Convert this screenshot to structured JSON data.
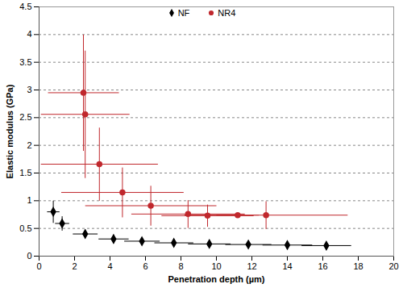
{
  "chart_data": {
    "type": "scatter",
    "x_label": "Penetration depth (µm)",
    "y_label": "Elastic modulus (GPa)",
    "xlim": [
      0,
      20
    ],
    "ylim": [
      0,
      4.5
    ],
    "xticks": [
      0,
      2,
      4,
      6,
      8,
      10,
      12,
      14,
      16,
      18,
      20
    ],
    "yticks": [
      0,
      0.5,
      1,
      1.5,
      2,
      2.5,
      3,
      3.5,
      4,
      4.5
    ],
    "grid": true,
    "legend": "top",
    "series": [
      {
        "name": "NF",
        "color": "#000000",
        "marker": "diamond",
        "x": [
          0.8,
          1.3,
          2.6,
          4.2,
          5.8,
          7.6,
          9.6,
          11.8,
          14.0,
          16.2
        ],
        "values": [
          0.8,
          0.59,
          0.4,
          0.31,
          0.27,
          0.24,
          0.22,
          0.21,
          0.2,
          0.19
        ],
        "x_error": [
          0.35,
          0.4,
          0.7,
          0.85,
          1.0,
          1.1,
          1.2,
          1.3,
          1.4,
          1.4
        ],
        "y_error": [
          0.2,
          0.13,
          0.08,
          0.08,
          0.06,
          0.04,
          0.03,
          0.03,
          0.03,
          0.03
        ]
      },
      {
        "name": "NR4",
        "color": "#c0282d",
        "marker": "circle",
        "x": [
          2.5,
          2.6,
          3.4,
          4.7,
          6.3,
          8.4,
          9.5,
          11.2,
          12.8
        ],
        "values": [
          2.95,
          2.56,
          1.66,
          1.15,
          0.91,
          0.76,
          0.73,
          0.74,
          0.74
        ],
        "x_error": [
          2.0,
          2.5,
          3.3,
          3.45,
          3.7,
          3.2,
          2.6,
          1.2,
          4.6
        ],
        "y_error": [
          1.05,
          1.15,
          0.66,
          0.45,
          0.36,
          0.25,
          0.2,
          0.04,
          0.25
        ]
      }
    ]
  }
}
